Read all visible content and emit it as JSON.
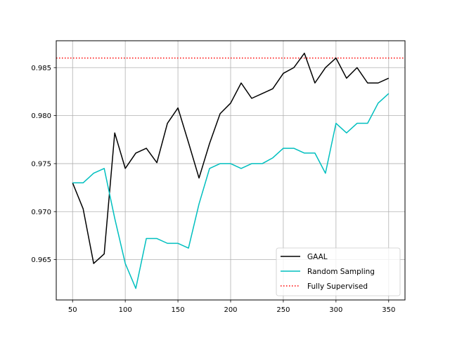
{
  "chart_data": {
    "type": "line",
    "title": "",
    "xlabel": "",
    "ylabel": "",
    "xlim": [
      34.5,
      365.5
    ],
    "ylim": [
      0.9608,
      0.9878
    ],
    "grid": true,
    "legend_position": "lower right",
    "x": [
      50,
      60,
      70,
      80,
      90,
      100,
      110,
      120,
      130,
      140,
      150,
      160,
      170,
      180,
      190,
      200,
      210,
      220,
      230,
      240,
      250,
      260,
      270,
      280,
      290,
      300,
      310,
      320,
      330,
      340,
      350
    ],
    "x_ticks": [
      "50",
      "100",
      "150",
      "200",
      "250",
      "300",
      "350"
    ],
    "x_tick_values": [
      50,
      100,
      150,
      200,
      250,
      300,
      350
    ],
    "y_ticks": [
      "0.965",
      "0.970",
      "0.975",
      "0.980",
      "0.985"
    ],
    "y_tick_values": [
      0.965,
      0.97,
      0.975,
      0.98,
      0.985
    ],
    "series": [
      {
        "name": "GAAL",
        "color": "#000000",
        "style": "solid",
        "values": [
          0.973,
          0.9703,
          0.9646,
          0.9656,
          0.9782,
          0.9745,
          0.9761,
          0.9766,
          0.9751,
          0.9792,
          0.9808,
          0.9772,
          0.9735,
          0.9771,
          0.9802,
          0.9813,
          0.9834,
          0.9818,
          0.9823,
          0.9828,
          0.9844,
          0.985,
          0.9865,
          0.9834,
          0.985,
          0.986,
          0.9839,
          0.985,
          0.9834,
          0.9834,
          0.9839
        ]
      },
      {
        "name": "Random Sampling",
        "color": "#00bfbf",
        "style": "solid",
        "values": [
          0.973,
          0.973,
          0.974,
          0.9745,
          0.9693,
          0.9646,
          0.962,
          0.9672,
          0.9672,
          0.9667,
          0.9667,
          0.9662,
          0.9708,
          0.9745,
          0.975,
          0.975,
          0.9745,
          0.975,
          0.975,
          0.9756,
          0.9766,
          0.9766,
          0.9761,
          0.9761,
          0.974,
          0.9792,
          0.9782,
          0.9792,
          0.9792,
          0.9813,
          0.9823
        ]
      }
    ],
    "reference_line": {
      "name": "Fully Supervised",
      "color": "#ff0000",
      "style": "dotted",
      "y": 0.986
    }
  }
}
